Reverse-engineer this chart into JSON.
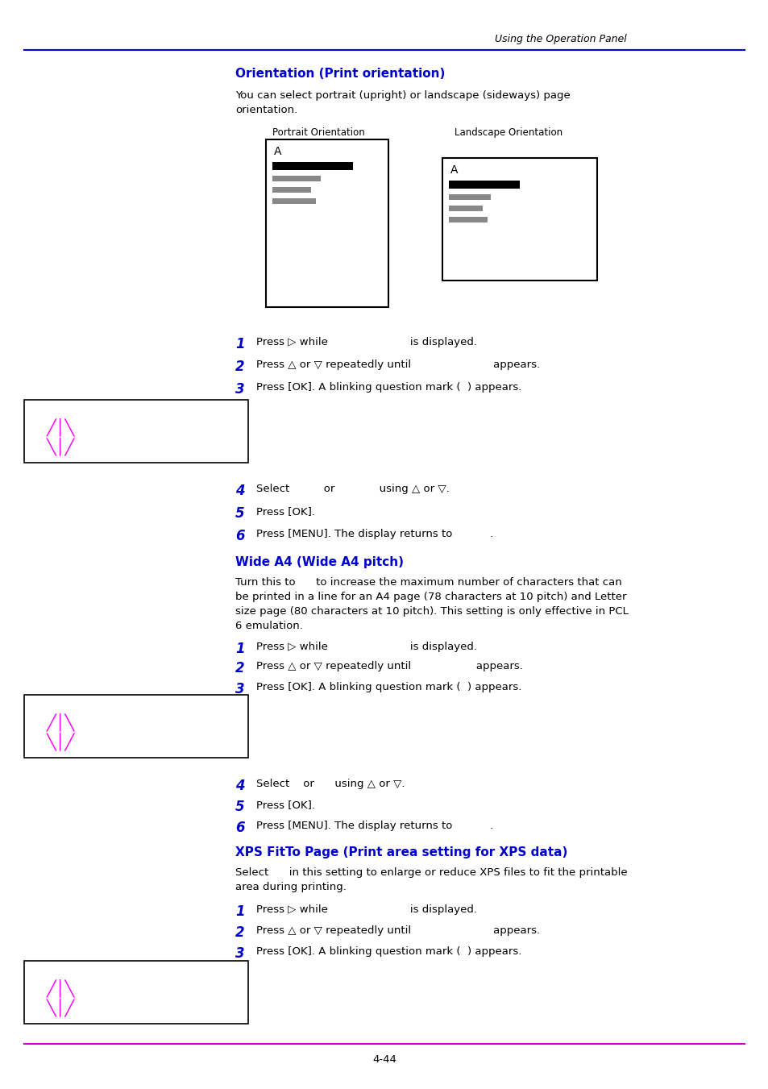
{
  "page_bg": "#ffffff",
  "header_text": "Using the Operation Panel",
  "header_line_color": "#0000cc",
  "footer_text": "4-44",
  "footer_line_color": "#cc00cc",
  "section1_title": "Orientation (Print orientation)",
  "section1_title_color": "#0000cc",
  "section1_body_line1": "You can select portrait (upright) or landscape (sideways) page",
  "section1_body_line2": "orientation.",
  "portrait_label": "Portrait Orientation",
  "landscape_label": "Landscape Orientation",
  "section1_steps": [
    {
      "num": "1",
      "text": "Press ▷ while                        is displayed."
    },
    {
      "num": "2",
      "text": "Press △ or ▽ repeatedly until                        appears."
    },
    {
      "num": "3",
      "text": "Press [OK]. A blinking question mark (  ) appears."
    },
    {
      "num": "4",
      "text": "Select          or             using △ or ▽."
    },
    {
      "num": "5",
      "text": "Press [OK]."
    },
    {
      "num": "6",
      "text": "Press [MENU]. The display returns to           ."
    }
  ],
  "section2_title": "Wide A4 (Wide A4 pitch)",
  "section2_title_color": "#0000cc",
  "section2_body": "Turn this to      to increase the maximum number of characters that can\nbe printed in a line for an A4 page (78 characters at 10 pitch) and Letter\nsize page (80 characters at 10 pitch). This setting is only effective in PCL\n6 emulation.",
  "section2_steps": [
    {
      "num": "1",
      "text": "Press ▷ while                        is displayed."
    },
    {
      "num": "2",
      "text": "Press △ or ▽ repeatedly until                   appears."
    },
    {
      "num": "3",
      "text": "Press [OK]. A blinking question mark (  ) appears."
    },
    {
      "num": "4",
      "text": "Select    or      using △ or ▽."
    },
    {
      "num": "5",
      "text": "Press [OK]."
    },
    {
      "num": "6",
      "text": "Press [MENU]. The display returns to           ."
    }
  ],
  "section3_title": "XPS FitTo Page (Print area setting for XPS data)",
  "section3_title_color": "#0000cc",
  "section3_body_line1": "Select      in this setting to enlarge or reduce XPS files to fit the printable",
  "section3_body_line2": "area during printing.",
  "section3_steps": [
    {
      "num": "1",
      "text": "Press ▷ while                        is displayed."
    },
    {
      "num": "2",
      "text": "Press △ or ▽ repeatedly until                        appears."
    },
    {
      "num": "3",
      "text": "Press [OK]. A blinking question mark (  ) appears."
    }
  ],
  "step_num_color": "#0000cc",
  "text_color": "#000000",
  "bold_text_color": "#000000",
  "lcd_box_border": "#000000",
  "lcd_symbol_color": "#ff00ff"
}
